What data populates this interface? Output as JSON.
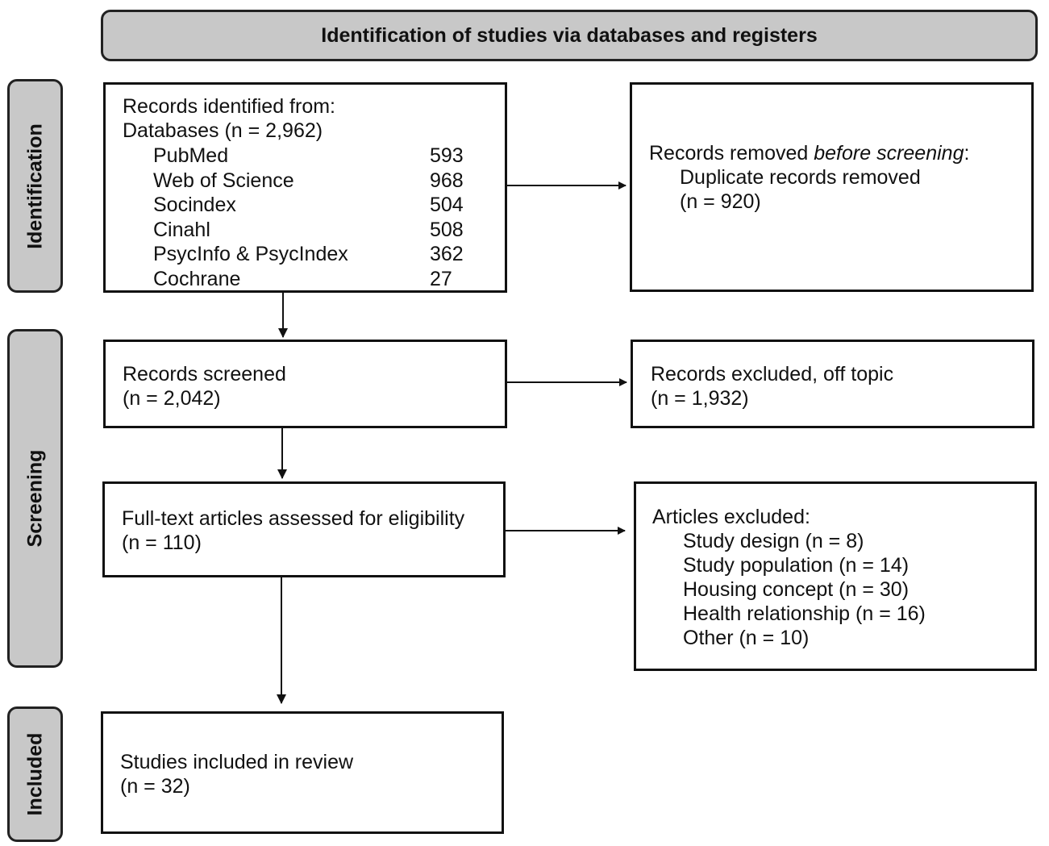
{
  "header": "Identification of studies via databases and registers",
  "phases": {
    "identification": "Identification",
    "screening": "Screening",
    "included": "Included"
  },
  "identified": {
    "title": "Records identified from:",
    "subtitle": "Databases (n = 2,962)",
    "databases": [
      {
        "name": "PubMed",
        "count": "593"
      },
      {
        "name": "Web of Science",
        "count": "968"
      },
      {
        "name": "Socindex",
        "count": "504"
      },
      {
        "name": "Cinahl",
        "count": "508"
      },
      {
        "name": "PsycInfo & PsycIndex",
        "count": "362"
      },
      {
        "name": "Cochrane",
        "count": "27"
      }
    ]
  },
  "removed": {
    "title_prefix": "Records removed ",
    "title_italic": "before screening",
    "title_suffix": ":",
    "line1": "Duplicate records removed",
    "line2": "(n = 920)"
  },
  "screened": {
    "line1": "Records screened",
    "line2": "(n = 2,042)"
  },
  "excluded_topic": {
    "line1": "Records excluded, off topic",
    "line2": "(n = 1,932)"
  },
  "fulltext": {
    "line1": "Full-text articles assessed for eligibility",
    "line2": "(n = 110)"
  },
  "articles_excluded": {
    "title": "Articles excluded:",
    "reasons": [
      "Study design (n = 8)",
      "Study population (n = 14)",
      "Housing concept (n = 30)",
      "Health relationship (n = 16)",
      "Other (n = 10)"
    ]
  },
  "included": {
    "line1": "Studies included in review",
    "line2": "(n = 32)"
  }
}
